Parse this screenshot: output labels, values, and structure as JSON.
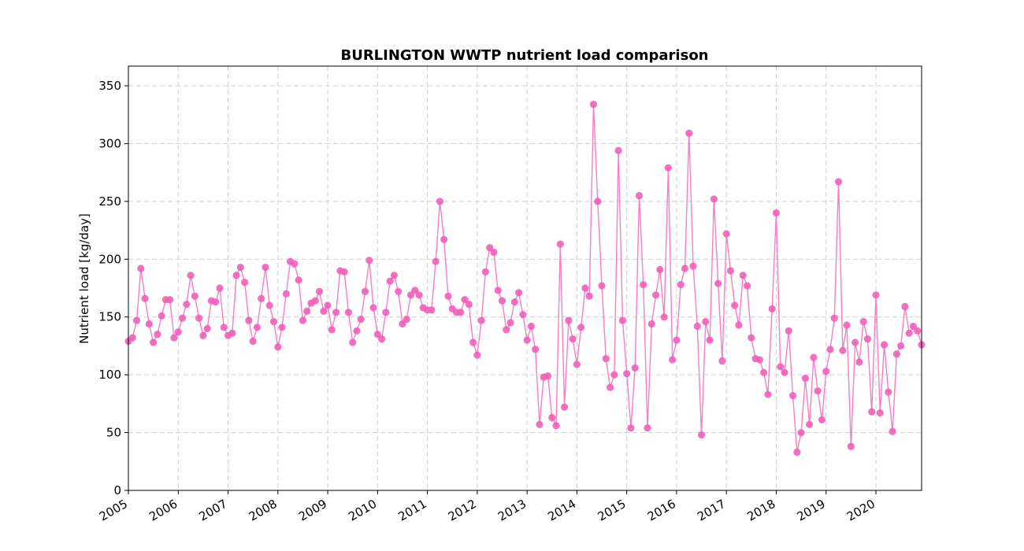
{
  "chart_data": {
    "type": "line",
    "title": "BURLINGTON WWTP nutrient load comparison",
    "xlabel": "",
    "ylabel": "Nutrient load [kg/day]",
    "x_tick_labels": [
      "2005",
      "2006",
      "2007",
      "2008",
      "2009",
      "2010",
      "2011",
      "2012",
      "2013",
      "2014",
      "2015",
      "2016",
      "2017",
      "2018",
      "2019",
      "2020"
    ],
    "y_ticks": [
      0,
      50,
      100,
      150,
      200,
      250,
      300,
      350
    ],
    "ylim": [
      0,
      367
    ],
    "xlim": [
      "2005-01",
      "2020-12"
    ],
    "grid": true,
    "legend": "none",
    "series": [
      {
        "color": "#f77fc6",
        "marker_color": "#f060b8",
        "x": [
          "2005-01",
          "2005-02",
          "2005-03",
          "2005-04",
          "2005-05",
          "2005-06",
          "2005-07",
          "2005-08",
          "2005-09",
          "2005-10",
          "2005-11",
          "2005-12",
          "2006-01",
          "2006-02",
          "2006-03",
          "2006-04",
          "2006-05",
          "2006-06",
          "2006-07",
          "2006-08",
          "2006-09",
          "2006-10",
          "2006-11",
          "2006-12",
          "2007-01",
          "2007-02",
          "2007-03",
          "2007-04",
          "2007-05",
          "2007-06",
          "2007-07",
          "2007-08",
          "2007-09",
          "2007-10",
          "2007-11",
          "2007-12",
          "2008-01",
          "2008-02",
          "2008-03",
          "2008-04",
          "2008-05",
          "2008-06",
          "2008-07",
          "2008-08",
          "2008-09",
          "2008-10",
          "2008-11",
          "2008-12",
          "2009-01",
          "2009-02",
          "2009-03",
          "2009-04",
          "2009-05",
          "2009-06",
          "2009-07",
          "2009-08",
          "2009-09",
          "2009-10",
          "2009-11",
          "2009-12",
          "2010-01",
          "2010-02",
          "2010-03",
          "2010-04",
          "2010-05",
          "2010-06",
          "2010-07",
          "2010-08",
          "2010-09",
          "2010-10",
          "2010-11",
          "2010-12",
          "2011-01",
          "2011-02",
          "2011-03",
          "2011-04",
          "2011-05",
          "2011-06",
          "2011-07",
          "2011-08",
          "2011-09",
          "2011-10",
          "2011-11",
          "2011-12",
          "2012-01",
          "2012-02",
          "2012-03",
          "2012-04",
          "2012-05",
          "2012-06",
          "2012-07",
          "2012-08",
          "2012-09",
          "2012-10",
          "2012-11",
          "2012-12",
          "2013-01",
          "2013-02",
          "2013-03",
          "2013-04",
          "2013-05",
          "2013-06",
          "2013-07",
          "2013-08",
          "2013-09",
          "2013-10",
          "2013-11",
          "2013-12",
          "2014-01",
          "2014-02",
          "2014-03",
          "2014-04",
          "2014-05",
          "2014-06",
          "2014-07",
          "2014-08",
          "2014-09",
          "2014-10",
          "2014-11",
          "2014-12",
          "2015-01",
          "2015-02",
          "2015-03",
          "2015-04",
          "2015-05",
          "2015-06",
          "2015-07",
          "2015-08",
          "2015-09",
          "2015-10",
          "2015-11",
          "2015-12",
          "2016-01",
          "2016-02",
          "2016-03",
          "2016-04",
          "2016-05",
          "2016-06",
          "2016-07",
          "2016-08",
          "2016-09",
          "2016-10",
          "2016-11",
          "2016-12",
          "2017-01",
          "2017-02",
          "2017-03",
          "2017-04",
          "2017-05",
          "2017-06",
          "2017-07",
          "2017-08",
          "2017-09",
          "2017-10",
          "2017-11",
          "2017-12",
          "2018-01",
          "2018-02",
          "2018-03",
          "2018-04",
          "2018-05",
          "2018-06",
          "2018-07",
          "2018-08",
          "2018-09",
          "2018-10",
          "2018-11",
          "2018-12",
          "2019-01",
          "2019-02",
          "2019-03",
          "2019-04",
          "2019-05",
          "2019-06",
          "2019-07",
          "2019-08",
          "2019-09",
          "2019-10",
          "2019-11",
          "2019-12",
          "2020-01",
          "2020-02",
          "2020-03",
          "2020-04",
          "2020-05",
          "2020-06",
          "2020-07",
          "2020-08",
          "2020-09",
          "2020-10",
          "2020-11",
          "2020-12"
        ],
        "values": [
          129,
          132,
          147,
          192,
          166,
          144,
          128,
          135,
          151,
          165,
          165,
          132,
          137,
          149,
          161,
          186,
          168,
          149,
          134,
          140,
          164,
          163,
          175,
          141,
          134,
          136,
          186,
          193,
          180,
          147,
          129,
          141,
          166,
          193,
          160,
          146,
          124,
          141,
          170,
          198,
          196,
          182,
          147,
          155,
          162,
          164,
          172,
          155,
          160,
          139,
          154,
          190,
          189,
          154,
          128,
          138,
          148,
          172,
          199,
          158,
          135,
          131,
          154,
          181,
          186,
          172,
          144,
          148,
          169,
          173,
          169,
          158,
          156,
          156,
          198,
          250,
          217,
          168,
          157,
          154,
          154,
          165,
          161,
          128,
          117,
          147,
          189,
          210,
          206,
          173,
          164,
          139,
          145,
          163,
          171,
          152,
          130,
          142,
          122,
          57,
          98,
          99,
          63,
          56,
          213,
          72,
          147,
          131,
          109,
          141,
          175,
          168,
          334,
          250,
          177,
          114,
          89,
          100,
          294,
          147,
          101,
          54,
          106,
          255,
          178,
          54,
          144,
          169,
          191,
          150,
          279,
          113,
          130,
          178,
          192,
          309,
          194,
          142,
          48,
          146,
          130,
          252,
          179,
          112,
          222,
          190,
          160,
          143,
          186,
          177,
          132,
          114,
          113,
          102,
          83,
          157,
          240,
          107,
          102,
          138,
          82,
          33,
          50,
          97,
          57,
          115,
          86,
          61,
          103,
          122,
          149,
          267,
          121,
          143,
          38,
          128,
          111,
          146,
          131,
          68,
          169,
          67,
          126,
          85,
          51,
          118,
          125,
          159,
          136,
          142,
          138,
          126
        ]
      }
    ]
  }
}
